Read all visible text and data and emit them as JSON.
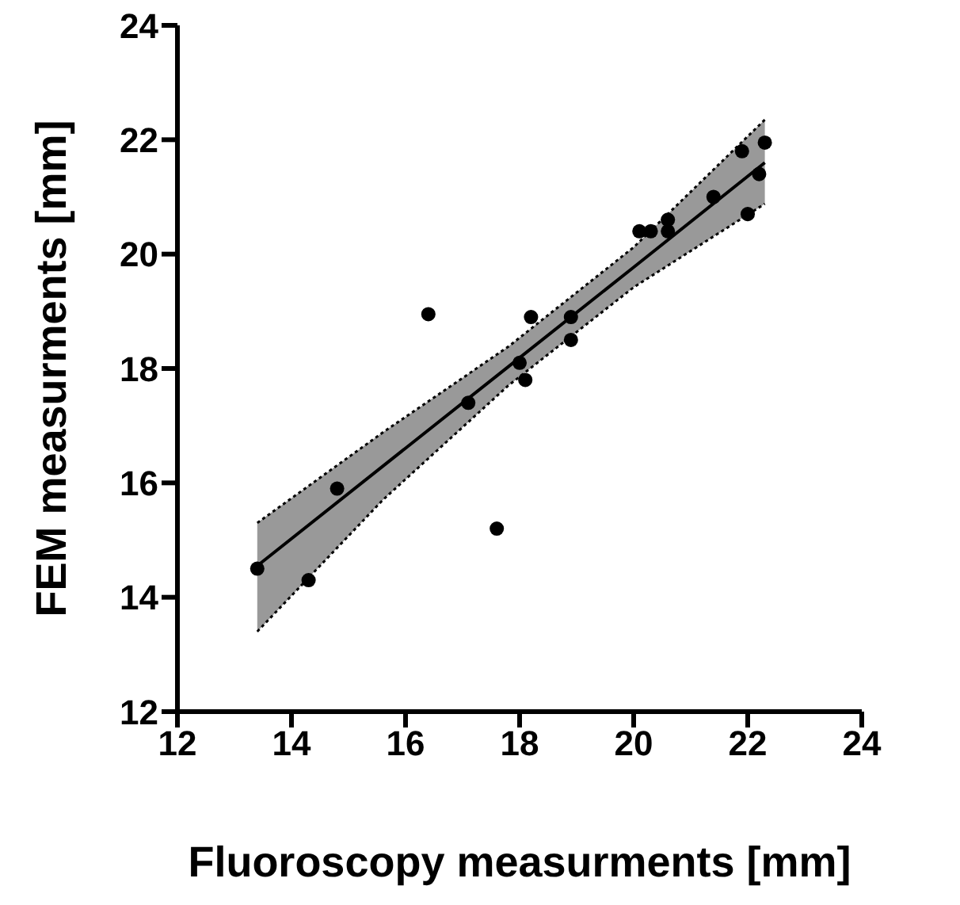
{
  "chart_data": {
    "type": "scatter",
    "xlabel": "Fluoroscopy measurments [mm]",
    "ylabel": "FEM measurments [mm]",
    "xlim": [
      12,
      24
    ],
    "xticks": [
      12,
      14,
      16,
      18,
      20,
      22,
      24
    ],
    "ylim": [
      12,
      24
    ],
    "yticks": [
      12,
      14,
      16,
      18,
      20,
      22,
      24
    ],
    "grid": false,
    "legend": false,
    "marker": "circle",
    "series": [
      {
        "type": "line",
        "color": "#000000",
        "marker": "none",
        "x": [
          13.4,
          15.6,
          17.8,
          20,
          22.3
        ],
        "values": [
          14.55,
          16.29,
          18.03,
          19.77,
          21.6
        ],
        "lower": [
          13.4,
          15.7,
          17.7,
          19.42,
          20.88
        ],
        "upper": [
          15.3,
          16.88,
          18.38,
          20.12,
          22.35
        ]
      },
      {
        "type": "line",
        "color": "#000000",
        "marker": "none",
        "line_style": "dotted",
        "x": [
          13.4,
          15.6,
          17.8,
          20,
          22.3
        ],
        "values": [
          13.4,
          15.7,
          17.7,
          19.42,
          20.88
        ]
      },
      {
        "type": "line",
        "color": "#000000",
        "marker": "none",
        "line_style": "dotted",
        "x": [
          13.4,
          15.6,
          17.8,
          20,
          22.3
        ],
        "values": [
          15.3,
          16.88,
          18.38,
          20.12,
          22.35
        ]
      },
      {
        "color": "#000000",
        "x": [
          13.4,
          14.3,
          14.8,
          16.4,
          17.1,
          17.6,
          18.0,
          18.1,
          18.2,
          18.9,
          18.9,
          20.1,
          20.3,
          20.6,
          20.6,
          21.4,
          21.9,
          22.0,
          22.2,
          22.3
        ],
        "values": [
          14.5,
          14.3,
          15.9,
          18.95,
          17.4,
          15.2,
          18.1,
          17.8,
          18.9,
          18.9,
          18.5,
          20.4,
          20.4,
          20.4,
          20.6,
          21.0,
          21.8,
          20.7,
          21.4,
          21.95
        ]
      }
    ]
  }
}
